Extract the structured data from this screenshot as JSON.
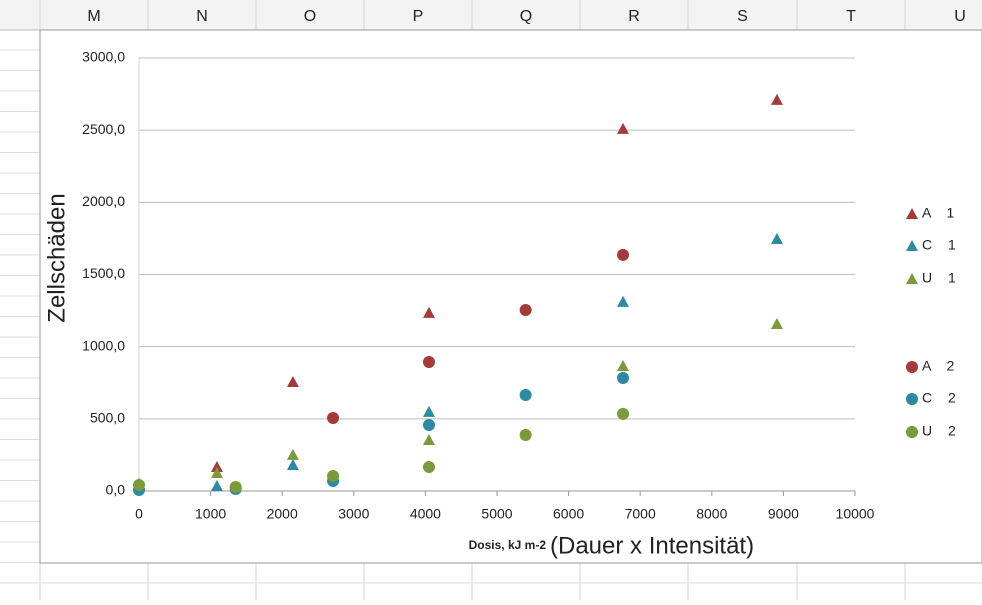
{
  "sheet": {
    "columns": [
      "M",
      "N",
      "O",
      "P",
      "Q",
      "R",
      "S",
      "T",
      "U"
    ]
  },
  "chart_data": {
    "type": "scatter",
    "ylabel": "Zellschäden",
    "xlabel": "Dosis, kJ m-2",
    "xlabel_note": "(Dauer x Intensität)",
    "xlim": [
      0,
      10000
    ],
    "xticks": [
      0,
      1000,
      2000,
      3000,
      4000,
      5000,
      6000,
      7000,
      8000,
      9000,
      10000
    ],
    "ylim": [
      0,
      3000
    ],
    "yticks": [
      {
        "value": 0,
        "label": "0,0"
      },
      {
        "value": 500,
        "label": "500,0"
      },
      {
        "value": 1000,
        "label": "1000,0"
      },
      {
        "value": 1500,
        "label": "1500,0"
      },
      {
        "value": 2000,
        "label": "2000,0"
      },
      {
        "value": 2500,
        "label": "2500,0"
      },
      {
        "value": 3000,
        "label": "3000,0"
      }
    ],
    "grid": true,
    "legend": "right",
    "series": [
      {
        "name": "A 1",
        "color": "#a33b3b",
        "marker": "triangle",
        "x": [
          1089,
          2150,
          4050,
          6760,
          8910
        ],
        "values": [
          166,
          755,
          1234,
          2509,
          2710
        ]
      },
      {
        "name": "C 1",
        "color": "#2e89a3",
        "marker": "triangle",
        "x": [
          1089,
          2150,
          4050,
          6760,
          8910
        ],
        "values": [
          35,
          180,
          548,
          1310,
          1746
        ]
      },
      {
        "name": "U 1",
        "color": "#7a9a3b",
        "marker": "triangle",
        "x": [
          0,
          1089,
          2150,
          4050,
          6760,
          8910
        ],
        "values": [
          50,
          125,
          250,
          353,
          866,
          1157
        ]
      },
      {
        "name": "A 2",
        "color": "#a33b3b",
        "marker": "circle",
        "x": [
          2710,
          4050,
          5400,
          6760
        ],
        "values": [
          506,
          894,
          1254,
          1636
        ]
      },
      {
        "name": "C 2",
        "color": "#2e89a3",
        "marker": "circle",
        "x": [
          0,
          1350,
          2710,
          4050,
          5400,
          6760
        ],
        "values": [
          7,
          14,
          69,
          457,
          665,
          783
        ]
      },
      {
        "name": "U 2",
        "color": "#7a9a3b",
        "marker": "circle",
        "x": [
          0,
          1350,
          2710,
          4050,
          5400,
          6760
        ],
        "values": [
          42,
          28,
          104,
          166,
          388,
          534
        ]
      }
    ]
  }
}
